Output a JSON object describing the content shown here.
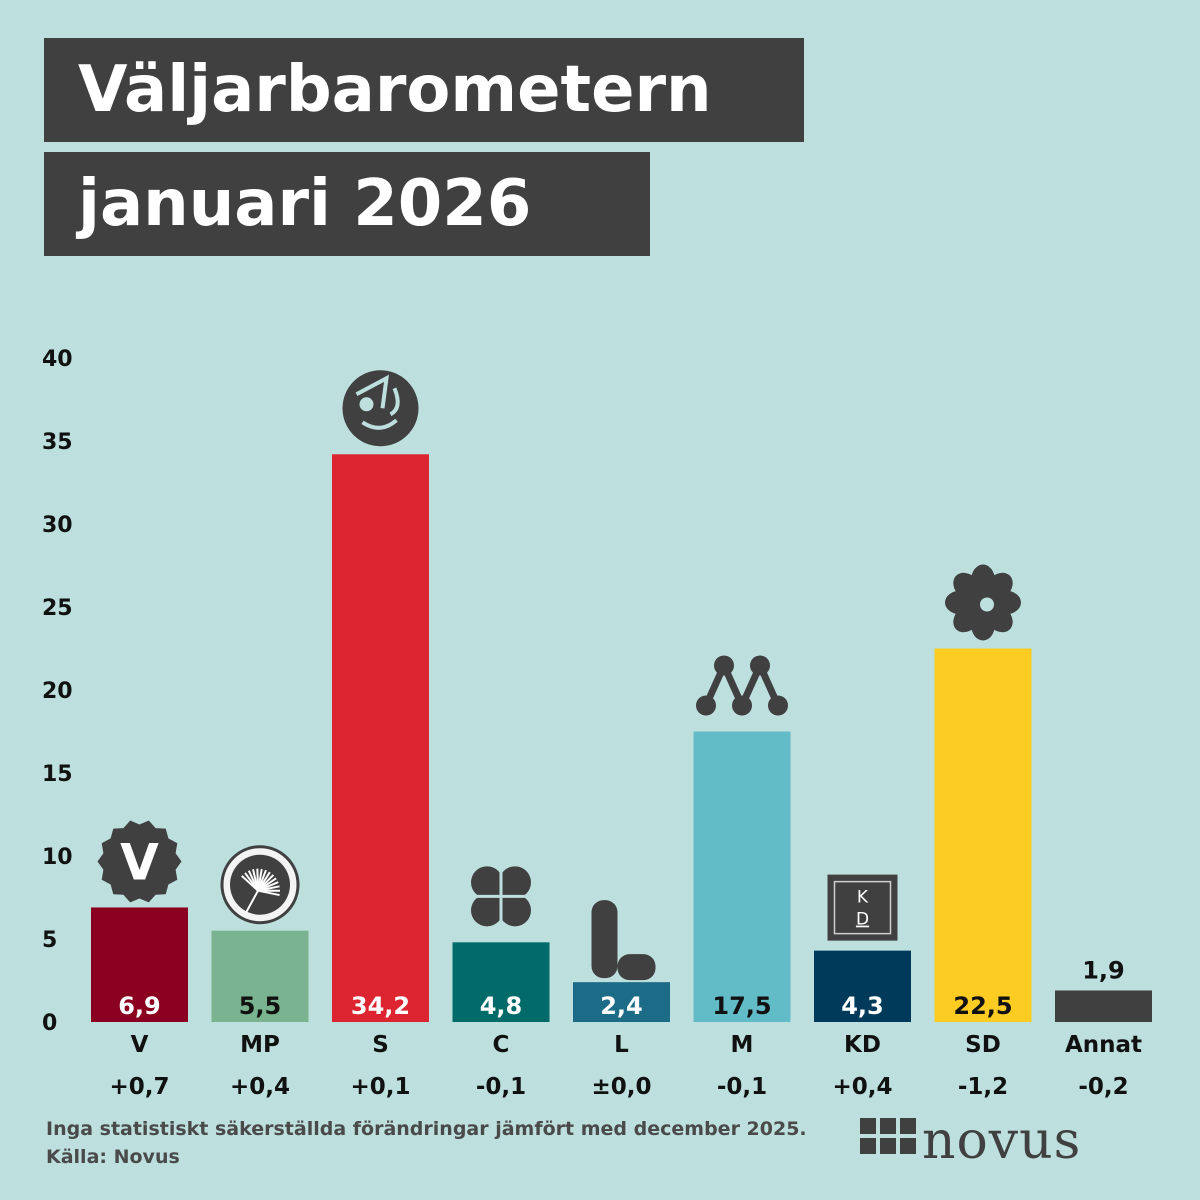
{
  "title_line1": "Väljarbarometern",
  "title_line2": "januari 2026",
  "footer": {
    "note": "Inga statistiskt säkerställda förändringar jämfört med december 2025.",
    "source": "Källa: Novus"
  },
  "logo_text": "NOVUS",
  "chart_data": {
    "type": "bar",
    "categories": [
      "V",
      "MP",
      "S",
      "C",
      "L",
      "M",
      "KD",
      "SD",
      "Annat"
    ],
    "values": [
      6.9,
      5.5,
      34.2,
      4.8,
      2.4,
      17.5,
      4.3,
      22.5,
      1.9
    ],
    "value_labels": [
      "6,9",
      "5,5",
      "34,2",
      "4,8",
      "2,4",
      "17,5",
      "4,3",
      "22,5",
      "1,9"
    ],
    "changes": [
      "+0,7",
      "+0,4",
      "+0,1",
      "-0,1",
      "±0,0",
      "-0,1",
      "+0,4",
      "-1,2",
      "-0,2"
    ],
    "colors": [
      "#8b0020",
      "#7ab38f",
      "#dc2530",
      "#006b68",
      "#1c6c87",
      "#62bcc8",
      "#003a5a",
      "#fccc22",
      "#404040"
    ],
    "label_colors": [
      "#ffffff",
      "#111111",
      "#ffffff",
      "#ffffff",
      "#ffffff",
      "#111111",
      "#ffffff",
      "#111111",
      "#111111"
    ],
    "icons": [
      "v-party-logo-icon",
      "mp-dandelion-logo-icon",
      "s-rose-logo-icon",
      "c-clover-logo-icon",
      "l-logo-icon",
      "m-logo-icon",
      "kd-logo-icon",
      "sd-flower-logo-icon",
      ""
    ],
    "y_ticks": [
      0,
      5,
      10,
      15,
      20,
      25,
      30,
      35,
      40
    ],
    "ylim": [
      0,
      40
    ],
    "grid": false,
    "legend": "none"
  }
}
